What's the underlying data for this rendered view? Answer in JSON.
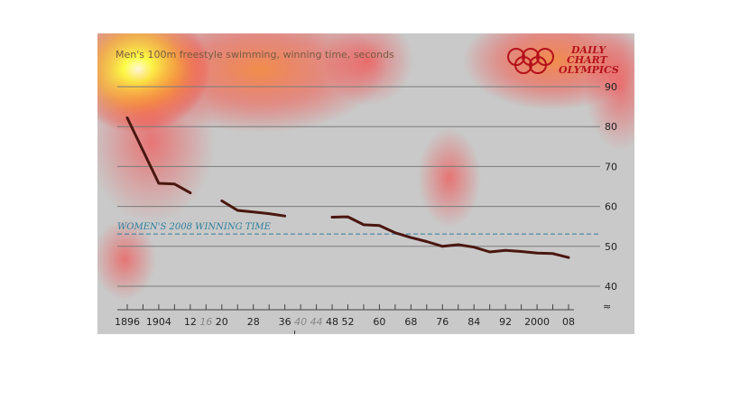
{
  "chart_data": {
    "type": "line",
    "title": "Men's 100m freestyle swimming, winning time, seconds",
    "ylim": [
      35,
      95
    ],
    "yticks": [
      40,
      50,
      60,
      70,
      80,
      90
    ],
    "xlim": [
      1896,
      2008
    ],
    "xticks": [
      {
        "year": 1896,
        "label": "1896",
        "gap": false
      },
      {
        "year": 1904,
        "label": "1904",
        "gap": false
      },
      {
        "year": 1912,
        "label": "12",
        "gap": false
      },
      {
        "year": 1916,
        "label": "16",
        "gap": true
      },
      {
        "year": 1920,
        "label": "20",
        "gap": false
      },
      {
        "year": 1928,
        "label": "28",
        "gap": false
      },
      {
        "year": 1936,
        "label": "36",
        "gap": false
      },
      {
        "year": 1940,
        "label": "40",
        "gap": true
      },
      {
        "year": 1944,
        "label": "44",
        "gap": true
      },
      {
        "year": 1948,
        "label": "48",
        "gap": false
      },
      {
        "year": 1952,
        "label": "52",
        "gap": false
      },
      {
        "year": 1960,
        "label": "60",
        "gap": false
      },
      {
        "year": 1968,
        "label": "68",
        "gap": false
      },
      {
        "year": 1976,
        "label": "76",
        "gap": false
      },
      {
        "year": 1984,
        "label": "84",
        "gap": false
      },
      {
        "year": 1992,
        "label": "92",
        "gap": false
      },
      {
        "year": 2000,
        "label": "2000",
        "gap": false
      },
      {
        "year": 2008,
        "label": "08",
        "gap": false
      }
    ],
    "series": [
      {
        "segments": [
          [
            [
              1896,
              82.2
            ],
            [
              1904,
              65.8
            ],
            [
              1908,
              65.6
            ],
            [
              1912,
              63.4
            ]
          ],
          [
            [
              1920,
              61.4
            ],
            [
              1924,
              59.0
            ],
            [
              1928,
              58.6
            ],
            [
              1932,
              58.2
            ],
            [
              1936,
              57.6
            ]
          ],
          [
            [
              1948,
              57.3
            ],
            [
              1952,
              57.4
            ],
            [
              1956,
              55.4
            ],
            [
              1960,
              55.2
            ],
            [
              1964,
              53.4
            ],
            [
              1968,
              52.2
            ],
            [
              1972,
              51.2
            ],
            [
              1976,
              50.0
            ],
            [
              1980,
              50.4
            ],
            [
              1984,
              49.8
            ],
            [
              1988,
              48.6
            ],
            [
              1992,
              49.0
            ],
            [
              1996,
              48.7
            ],
            [
              2000,
              48.3
            ],
            [
              2004,
              48.2
            ],
            [
              2008,
              47.2
            ]
          ]
        ],
        "color": "#4a1710"
      }
    ],
    "reference_line": {
      "label": "WOMEN'S 2008 WINNING TIME",
      "value": 53.1,
      "color": "#2e7f9e"
    },
    "axis_break_symbol": "≈"
  },
  "logo": {
    "line1": "DAILY",
    "line2": "CHART",
    "line3": "OLYMPICS",
    "color": "#b5121b"
  }
}
